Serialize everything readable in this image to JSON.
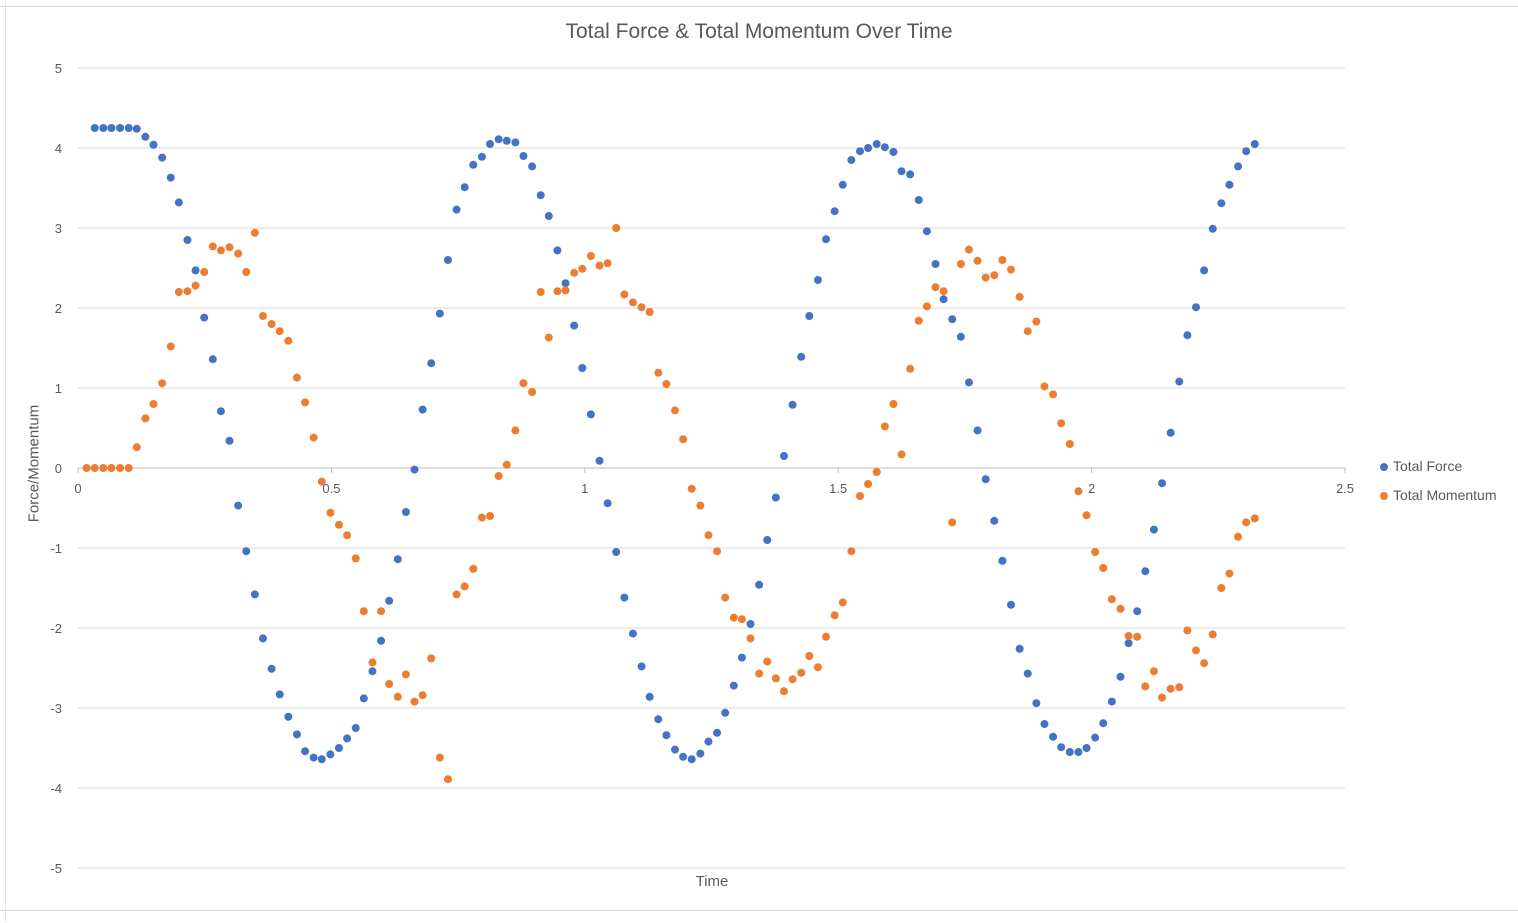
{
  "chart_data": {
    "type": "scatter",
    "title": "Total Force & Total Momentum Over Time",
    "xlabel": "Time",
    "ylabel": "Force/Momentum",
    "xlim": [
      0,
      2.5
    ],
    "ylim": [
      -5,
      5
    ],
    "x_ticks": [
      "0",
      "0.5",
      "1",
      "1.5",
      "2",
      "2.5"
    ],
    "y_ticks": [
      "5",
      "4",
      "3",
      "2",
      "1",
      "0",
      "-1",
      "-2",
      "-3",
      "-4",
      "-5"
    ],
    "grid": "horizontal",
    "legend_position": "right",
    "series": [
      {
        "name": "Total Force",
        "color": "#4472C4",
        "points": [
          [
            0.033,
            4.25
          ],
          [
            0.05,
            4.25
          ],
          [
            0.066,
            4.25
          ],
          [
            0.083,
            4.25
          ],
          [
            0.1,
            4.25
          ],
          [
            0.116,
            4.24
          ],
          [
            0.133,
            4.14
          ],
          [
            0.149,
            4.04
          ],
          [
            0.166,
            3.88
          ],
          [
            0.183,
            3.63
          ],
          [
            0.199,
            3.32
          ],
          [
            0.216,
            2.85
          ],
          [
            0.232,
            2.47
          ],
          [
            0.249,
            1.88
          ],
          [
            0.266,
            1.36
          ],
          [
            0.282,
            0.71
          ],
          [
            0.299,
            0.34
          ],
          [
            0.316,
            -0.47
          ],
          [
            0.332,
            -1.04
          ],
          [
            0.349,
            -1.58
          ],
          [
            0.365,
            -2.13
          ],
          [
            0.382,
            -2.51
          ],
          [
            0.398,
            -2.83
          ],
          [
            0.415,
            -3.11
          ],
          [
            0.432,
            -3.33
          ],
          [
            0.448,
            -3.54
          ],
          [
            0.465,
            -3.62
          ],
          [
            0.481,
            -3.64
          ],
          [
            0.498,
            -3.58
          ],
          [
            0.515,
            -3.5
          ],
          [
            0.531,
            -3.38
          ],
          [
            0.548,
            -3.25
          ],
          [
            0.564,
            -2.88
          ],
          [
            0.581,
            -2.54
          ],
          [
            0.598,
            -2.16
          ],
          [
            0.614,
            -1.66
          ],
          [
            0.631,
            -1.14
          ],
          [
            0.647,
            -0.55
          ],
          [
            0.664,
            -0.02
          ],
          [
            0.68,
            0.73
          ],
          [
            0.697,
            1.31
          ],
          [
            0.714,
            1.93
          ],
          [
            0.73,
            2.6
          ],
          [
            0.747,
            3.23
          ],
          [
            0.763,
            3.51
          ],
          [
            0.78,
            3.79
          ],
          [
            0.797,
            3.89
          ],
          [
            0.813,
            4.05
          ],
          [
            0.83,
            4.11
          ],
          [
            0.846,
            4.09
          ],
          [
            0.863,
            4.07
          ],
          [
            0.879,
            3.9
          ],
          [
            0.896,
            3.77
          ],
          [
            0.913,
            3.41
          ],
          [
            0.929,
            3.15
          ],
          [
            0.946,
            2.72
          ],
          [
            0.962,
            2.31
          ],
          [
            0.979,
            1.78
          ],
          [
            0.995,
            1.25
          ],
          [
            1.012,
            0.67
          ],
          [
            1.029,
            0.09
          ],
          [
            1.045,
            -0.44
          ],
          [
            1.062,
            -1.05
          ],
          [
            1.078,
            -1.62
          ],
          [
            1.095,
            -2.07
          ],
          [
            1.112,
            -2.48
          ],
          [
            1.128,
            -2.86
          ],
          [
            1.145,
            -3.14
          ],
          [
            1.161,
            -3.34
          ],
          [
            1.178,
            -3.52
          ],
          [
            1.194,
            -3.61
          ],
          [
            1.211,
            -3.64
          ],
          [
            1.228,
            -3.57
          ],
          [
            1.244,
            -3.42
          ],
          [
            1.261,
            -3.31
          ],
          [
            1.277,
            -3.06
          ],
          [
            1.294,
            -2.72
          ],
          [
            1.31,
            -2.37
          ],
          [
            1.327,
            -1.95
          ],
          [
            1.344,
            -1.46
          ],
          [
            1.36,
            -0.9
          ],
          [
            1.377,
            -0.37
          ],
          [
            1.393,
            0.15
          ],
          [
            1.41,
            0.79
          ],
          [
            1.427,
            1.39
          ],
          [
            1.443,
            1.9
          ],
          [
            1.46,
            2.35
          ],
          [
            1.476,
            2.86
          ],
          [
            1.493,
            3.21
          ],
          [
            1.509,
            3.54
          ],
          [
            1.526,
            3.85
          ],
          [
            1.543,
            3.96
          ],
          [
            1.559,
            4.0
          ],
          [
            1.576,
            4.05
          ],
          [
            1.592,
            4.01
          ],
          [
            1.609,
            3.95
          ],
          [
            1.625,
            3.71
          ],
          [
            1.642,
            3.67
          ],
          [
            1.659,
            3.35
          ],
          [
            1.675,
            2.96
          ],
          [
            1.692,
            2.55
          ],
          [
            1.708,
            2.11
          ],
          [
            1.725,
            1.86
          ],
          [
            1.742,
            1.64
          ],
          [
            1.758,
            1.07
          ],
          [
            1.775,
            0.47
          ],
          [
            1.791,
            -0.14
          ],
          [
            1.808,
            -0.66
          ],
          [
            1.824,
            -1.16
          ],
          [
            1.841,
            -1.71
          ],
          [
            1.858,
            -2.26
          ],
          [
            1.874,
            -2.57
          ],
          [
            1.891,
            -2.94
          ],
          [
            1.907,
            -3.2
          ],
          [
            1.924,
            -3.36
          ],
          [
            1.94,
            -3.49
          ],
          [
            1.957,
            -3.55
          ],
          [
            1.974,
            -3.55
          ],
          [
            1.99,
            -3.5
          ],
          [
            2.007,
            -3.37
          ],
          [
            2.023,
            -3.19
          ],
          [
            2.04,
            -2.92
          ],
          [
            2.057,
            -2.61
          ],
          [
            2.073,
            -2.19
          ],
          [
            2.09,
            -1.79
          ],
          [
            2.106,
            -1.29
          ],
          [
            2.123,
            -0.77
          ],
          [
            2.139,
            -0.19
          ],
          [
            2.156,
            0.44
          ],
          [
            2.173,
            1.08
          ],
          [
            2.189,
            1.66
          ],
          [
            2.206,
            2.01
          ],
          [
            2.222,
            2.47
          ],
          [
            2.239,
            2.99
          ],
          [
            2.256,
            3.31
          ],
          [
            2.272,
            3.54
          ],
          [
            2.289,
            3.77
          ],
          [
            2.305,
            3.96
          ],
          [
            2.322,
            4.05
          ]
        ]
      },
      {
        "name": "Total Momentum",
        "color": "#ED7D31",
        "points": [
          [
            0.017,
            0.0
          ],
          [
            0.033,
            0.0
          ],
          [
            0.05,
            0.0
          ],
          [
            0.066,
            0.0
          ],
          [
            0.083,
            0.0
          ],
          [
            0.1,
            0.0
          ],
          [
            0.116,
            0.26
          ],
          [
            0.133,
            0.62
          ],
          [
            0.149,
            0.8
          ],
          [
            0.166,
            1.06
          ],
          [
            0.183,
            1.52
          ],
          [
            0.199,
            2.2
          ],
          [
            0.216,
            2.21
          ],
          [
            0.232,
            2.28
          ],
          [
            0.249,
            2.45
          ],
          [
            0.266,
            2.77
          ],
          [
            0.282,
            2.72
          ],
          [
            0.299,
            2.76
          ],
          [
            0.316,
            2.68
          ],
          [
            0.332,
            2.45
          ],
          [
            0.349,
            2.94
          ],
          [
            0.365,
            1.9
          ],
          [
            0.382,
            1.8
          ],
          [
            0.398,
            1.71
          ],
          [
            0.415,
            1.59
          ],
          [
            0.432,
            1.13
          ],
          [
            0.448,
            0.82
          ],
          [
            0.465,
            0.38
          ],
          [
            0.481,
            -0.17
          ],
          [
            0.498,
            -0.56
          ],
          [
            0.515,
            -0.71
          ],
          [
            0.531,
            -0.84
          ],
          [
            0.548,
            -1.13
          ],
          [
            0.564,
            -1.79
          ],
          [
            0.581,
            -2.43
          ],
          [
            0.598,
            -1.79
          ],
          [
            0.614,
            -2.7
          ],
          [
            0.631,
            -2.86
          ],
          [
            0.647,
            -2.58
          ],
          [
            0.664,
            -2.92
          ],
          [
            0.68,
            -2.84
          ],
          [
            0.697,
            -2.38
          ],
          [
            0.714,
            -3.62
          ],
          [
            0.73,
            -3.89
          ],
          [
            0.747,
            -1.58
          ],
          [
            0.763,
            -1.48
          ],
          [
            0.78,
            -1.26
          ],
          [
            0.797,
            -0.62
          ],
          [
            0.813,
            -0.6
          ],
          [
            0.83,
            -0.1
          ],
          [
            0.846,
            0.04
          ],
          [
            0.863,
            0.47
          ],
          [
            0.879,
            1.06
          ],
          [
            0.896,
            0.95
          ],
          [
            0.913,
            2.2
          ],
          [
            0.929,
            1.63
          ],
          [
            0.946,
            2.21
          ],
          [
            0.962,
            2.22
          ],
          [
            0.979,
            2.44
          ],
          [
            0.995,
            2.49
          ],
          [
            1.012,
            2.65
          ],
          [
            1.029,
            2.53
          ],
          [
            1.045,
            2.56
          ],
          [
            1.062,
            3.0
          ],
          [
            1.078,
            2.17
          ],
          [
            1.095,
            2.07
          ],
          [
            1.112,
            2.01
          ],
          [
            1.128,
            1.95
          ],
          [
            1.145,
            1.19
          ],
          [
            1.161,
            1.05
          ],
          [
            1.178,
            0.72
          ],
          [
            1.194,
            0.36
          ],
          [
            1.211,
            -0.26
          ],
          [
            1.228,
            -0.47
          ],
          [
            1.244,
            -0.84
          ],
          [
            1.261,
            -1.04
          ],
          [
            1.277,
            -1.62
          ],
          [
            1.294,
            -1.87
          ],
          [
            1.31,
            -1.89
          ],
          [
            1.327,
            -2.13
          ],
          [
            1.344,
            -2.57
          ],
          [
            1.36,
            -2.42
          ],
          [
            1.377,
            -2.63
          ],
          [
            1.393,
            -2.79
          ],
          [
            1.41,
            -2.64
          ],
          [
            1.427,
            -2.56
          ],
          [
            1.443,
            -2.35
          ],
          [
            1.46,
            -2.49
          ],
          [
            1.476,
            -2.11
          ],
          [
            1.493,
            -1.84
          ],
          [
            1.509,
            -1.68
          ],
          [
            1.526,
            -1.04
          ],
          [
            1.543,
            -0.35
          ],
          [
            1.559,
            -0.2
          ],
          [
            1.576,
            -0.05
          ],
          [
            1.592,
            0.52
          ],
          [
            1.609,
            0.8
          ],
          [
            1.625,
            0.17
          ],
          [
            1.642,
            1.24
          ],
          [
            1.659,
            1.84
          ],
          [
            1.675,
            2.02
          ],
          [
            1.692,
            2.26
          ],
          [
            1.708,
            2.21
          ],
          [
            1.725,
            -0.68
          ],
          [
            1.742,
            2.55
          ],
          [
            1.758,
            2.73
          ],
          [
            1.775,
            2.59
          ],
          [
            1.791,
            2.38
          ],
          [
            1.808,
            2.41
          ],
          [
            1.824,
            2.6
          ],
          [
            1.841,
            2.48
          ],
          [
            1.858,
            2.14
          ],
          [
            1.874,
            1.71
          ],
          [
            1.891,
            1.83
          ],
          [
            1.907,
            1.02
          ],
          [
            1.924,
            0.92
          ],
          [
            1.94,
            0.56
          ],
          [
            1.957,
            0.3
          ],
          [
            1.974,
            -0.29
          ],
          [
            1.99,
            -0.59
          ],
          [
            2.007,
            -1.05
          ],
          [
            2.023,
            -1.25
          ],
          [
            2.04,
            -1.64
          ],
          [
            2.057,
            -1.76
          ],
          [
            2.073,
            -2.1
          ],
          [
            2.09,
            -2.11
          ],
          [
            2.106,
            -2.73
          ],
          [
            2.123,
            -2.54
          ],
          [
            2.139,
            -2.87
          ],
          [
            2.156,
            -2.76
          ],
          [
            2.173,
            -2.74
          ],
          [
            2.189,
            -2.03
          ],
          [
            2.206,
            -2.28
          ],
          [
            2.222,
            -2.44
          ],
          [
            2.239,
            -2.08
          ],
          [
            2.256,
            -1.5
          ],
          [
            2.272,
            -1.32
          ],
          [
            2.289,
            -0.86
          ],
          [
            2.305,
            -0.68
          ],
          [
            2.322,
            -0.63
          ]
        ]
      }
    ]
  }
}
